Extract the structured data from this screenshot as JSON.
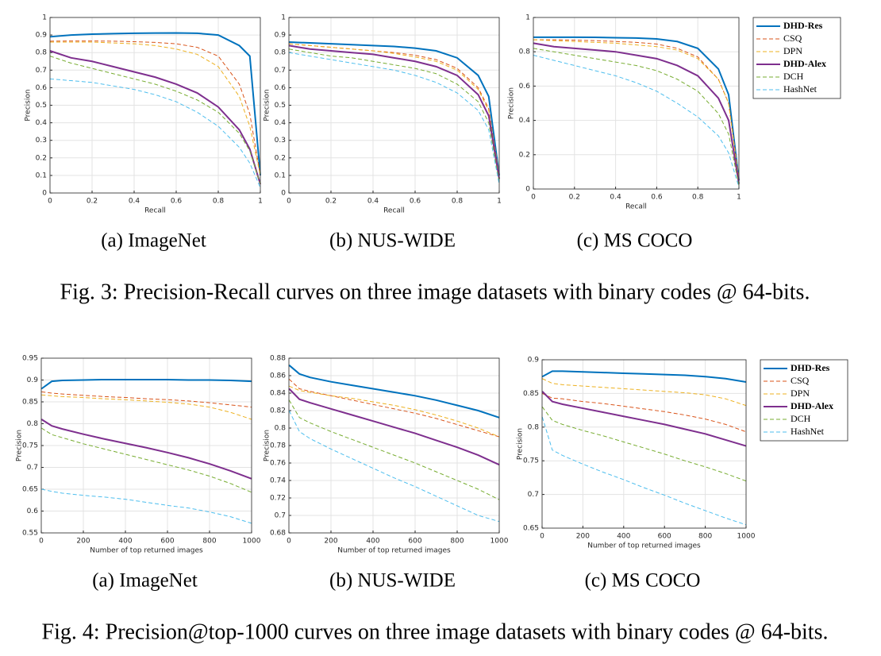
{
  "chart_data": [
    {
      "type": "line",
      "caption": "(a) ImageNet",
      "x_label": "Recall",
      "y_label": "Precision",
      "x": [
        0,
        0.1,
        0.2,
        0.3,
        0.4,
        0.5,
        0.6,
        0.7,
        0.8,
        0.9,
        0.95,
        1
      ],
      "xlim": [
        0,
        1
      ],
      "ylim": [
        0,
        1
      ],
      "xticks": [
        0,
        0.2,
        0.4,
        0.6,
        0.8,
        1
      ],
      "yticks": [
        0,
        0.1,
        0.2,
        0.3,
        0.4,
        0.5,
        0.6,
        0.7,
        0.8,
        0.9,
        1
      ],
      "grid": true,
      "series": [
        {
          "name": "DHD-Res",
          "color": "#0072bd",
          "style": "solid",
          "values": [
            0.89,
            0.9,
            0.905,
            0.908,
            0.91,
            0.911,
            0.912,
            0.91,
            0.9,
            0.84,
            0.78,
            0.1
          ]
        },
        {
          "name": "CSQ",
          "color": "#d95319",
          "style": "dashed",
          "values": [
            0.865,
            0.866,
            0.866,
            0.865,
            0.862,
            0.858,
            0.85,
            0.83,
            0.78,
            0.62,
            0.45,
            0.1
          ]
        },
        {
          "name": "DPN",
          "color": "#edb120",
          "style": "dashed",
          "values": [
            0.86,
            0.86,
            0.86,
            0.855,
            0.85,
            0.84,
            0.82,
            0.79,
            0.72,
            0.55,
            0.38,
            0.1
          ]
        },
        {
          "name": "DHD-Alex",
          "color": "#7e2f8e",
          "style": "solid",
          "values": [
            0.81,
            0.77,
            0.75,
            0.72,
            0.69,
            0.66,
            0.62,
            0.57,
            0.49,
            0.36,
            0.25,
            0.05
          ]
        },
        {
          "name": "DCH",
          "color": "#77ac30",
          "style": "dashed",
          "values": [
            0.78,
            0.74,
            0.71,
            0.68,
            0.65,
            0.62,
            0.58,
            0.53,
            0.46,
            0.34,
            0.24,
            0.05
          ]
        },
        {
          "name": "HashNet",
          "color": "#4dbeee",
          "style": "dashed",
          "values": [
            0.65,
            0.64,
            0.63,
            0.61,
            0.59,
            0.56,
            0.52,
            0.46,
            0.38,
            0.26,
            0.17,
            0.03
          ]
        }
      ]
    },
    {
      "type": "line",
      "caption": "(b) NUS-WIDE",
      "x_label": "Recall",
      "y_label": "Precision",
      "x": [
        0,
        0.1,
        0.2,
        0.3,
        0.4,
        0.5,
        0.6,
        0.7,
        0.8,
        0.9,
        0.95,
        1
      ],
      "xlim": [
        0,
        1
      ],
      "ylim": [
        0,
        1
      ],
      "xticks": [
        0,
        0.2,
        0.4,
        0.6,
        0.8,
        1
      ],
      "yticks": [
        0,
        0.1,
        0.2,
        0.3,
        0.4,
        0.5,
        0.6,
        0.7,
        0.8,
        0.9,
        1
      ],
      "grid": true,
      "series": [
        {
          "name": "DHD-Res",
          "color": "#0072bd",
          "style": "solid",
          "values": [
            0.86,
            0.855,
            0.85,
            0.845,
            0.84,
            0.835,
            0.825,
            0.81,
            0.77,
            0.67,
            0.55,
            0.1
          ]
        },
        {
          "name": "CSQ",
          "color": "#d95319",
          "style": "dashed",
          "values": [
            0.85,
            0.84,
            0.83,
            0.82,
            0.81,
            0.8,
            0.785,
            0.76,
            0.71,
            0.6,
            0.48,
            0.1
          ]
        },
        {
          "name": "DPN",
          "color": "#edb120",
          "style": "dashed",
          "values": [
            0.85,
            0.84,
            0.83,
            0.82,
            0.81,
            0.795,
            0.775,
            0.75,
            0.7,
            0.59,
            0.47,
            0.1
          ]
        },
        {
          "name": "DHD-Alex",
          "color": "#7e2f8e",
          "style": "solid",
          "values": [
            0.84,
            0.82,
            0.81,
            0.8,
            0.79,
            0.77,
            0.75,
            0.72,
            0.67,
            0.56,
            0.44,
            0.08
          ]
        },
        {
          "name": "DCH",
          "color": "#77ac30",
          "style": "dashed",
          "values": [
            0.82,
            0.8,
            0.78,
            0.77,
            0.75,
            0.73,
            0.71,
            0.68,
            0.62,
            0.52,
            0.4,
            0.06
          ]
        },
        {
          "name": "HashNet",
          "color": "#4dbeee",
          "style": "dashed",
          "values": [
            0.8,
            0.78,
            0.76,
            0.74,
            0.72,
            0.7,
            0.67,
            0.63,
            0.57,
            0.47,
            0.36,
            0.05
          ]
        }
      ]
    },
    {
      "type": "line",
      "caption": "(c) MS COCO",
      "x_label": "Recall",
      "y_label": "Precision",
      "legend": "right",
      "x": [
        0,
        0.1,
        0.2,
        0.3,
        0.4,
        0.5,
        0.6,
        0.7,
        0.8,
        0.9,
        0.95,
        1
      ],
      "xlim": [
        0,
        1
      ],
      "ylim": [
        0,
        1
      ],
      "xticks": [
        0,
        0.2,
        0.4,
        0.6,
        0.8,
        1
      ],
      "yticks": [
        0,
        0.2,
        0.4,
        0.6,
        0.8,
        1
      ],
      "grid": true,
      "series": [
        {
          "name": "DHD-Res",
          "color": "#0072bd",
          "style": "solid",
          "values": [
            0.885,
            0.885,
            0.885,
            0.884,
            0.882,
            0.88,
            0.875,
            0.86,
            0.82,
            0.7,
            0.55,
            0.05
          ]
        },
        {
          "name": "CSQ",
          "color": "#d95319",
          "style": "dashed",
          "values": [
            0.87,
            0.87,
            0.868,
            0.865,
            0.86,
            0.855,
            0.845,
            0.82,
            0.77,
            0.64,
            0.5,
            0.05
          ]
        },
        {
          "name": "DPN",
          "color": "#edb120",
          "style": "dashed",
          "values": [
            0.87,
            0.865,
            0.86,
            0.855,
            0.85,
            0.84,
            0.83,
            0.81,
            0.76,
            0.64,
            0.5,
            0.05
          ]
        },
        {
          "name": "DHD-Alex",
          "color": "#7e2f8e",
          "style": "solid",
          "values": [
            0.85,
            0.83,
            0.82,
            0.81,
            0.8,
            0.78,
            0.76,
            0.72,
            0.66,
            0.53,
            0.4,
            0.03
          ]
        },
        {
          "name": "DCH",
          "color": "#77ac30",
          "style": "dashed",
          "values": [
            0.82,
            0.8,
            0.78,
            0.76,
            0.74,
            0.72,
            0.69,
            0.64,
            0.57,
            0.44,
            0.32,
            0.02
          ]
        },
        {
          "name": "HashNet",
          "color": "#4dbeee",
          "style": "dashed",
          "values": [
            0.78,
            0.75,
            0.72,
            0.69,
            0.66,
            0.62,
            0.57,
            0.5,
            0.42,
            0.31,
            0.21,
            0.01
          ]
        }
      ]
    },
    {
      "type": "line",
      "caption": "(a) ImageNet",
      "x_label": "Number of top returned images",
      "y_label": "Precision",
      "x": [
        1,
        50,
        100,
        200,
        300,
        400,
        500,
        600,
        700,
        800,
        900,
        1000
      ],
      "xlim": [
        0,
        1000
      ],
      "ylim": [
        0.55,
        0.95
      ],
      "xticks": [
        0,
        200,
        400,
        600,
        800,
        1000
      ],
      "yticks": [
        0.55,
        0.6,
        0.65,
        0.7,
        0.75,
        0.8,
        0.85,
        0.9,
        0.95
      ],
      "grid": true,
      "series": [
        {
          "name": "DHD-Res",
          "color": "#0072bd",
          "style": "solid",
          "values": [
            0.88,
            0.897,
            0.899,
            0.9,
            0.901,
            0.901,
            0.901,
            0.901,
            0.9,
            0.9,
            0.899,
            0.897
          ]
        },
        {
          "name": "CSQ",
          "color": "#d95319",
          "style": "dashed",
          "values": [
            0.873,
            0.87,
            0.868,
            0.865,
            0.862,
            0.86,
            0.857,
            0.855,
            0.852,
            0.848,
            0.843,
            0.838
          ]
        },
        {
          "name": "DPN",
          "color": "#edb120",
          "style": "dashed",
          "values": [
            0.866,
            0.864,
            0.862,
            0.86,
            0.857,
            0.855,
            0.852,
            0.849,
            0.845,
            0.838,
            0.826,
            0.81
          ]
        },
        {
          "name": "DHD-Alex",
          "color": "#7e2f8e",
          "style": "solid",
          "values": [
            0.81,
            0.795,
            0.788,
            0.776,
            0.765,
            0.755,
            0.745,
            0.734,
            0.722,
            0.708,
            0.692,
            0.674
          ]
        },
        {
          "name": "DCH",
          "color": "#77ac30",
          "style": "dashed",
          "values": [
            0.79,
            0.775,
            0.768,
            0.754,
            0.742,
            0.73,
            0.718,
            0.706,
            0.694,
            0.68,
            0.663,
            0.643
          ]
        },
        {
          "name": "HashNet",
          "color": "#4dbeee",
          "style": "dashed",
          "values": [
            0.65,
            0.645,
            0.641,
            0.636,
            0.632,
            0.627,
            0.62,
            0.613,
            0.607,
            0.598,
            0.587,
            0.572
          ]
        }
      ]
    },
    {
      "type": "line",
      "caption": "(b) NUS-WIDE",
      "x_label": "Number of top returned images",
      "y_label": "Precision",
      "x": [
        1,
        50,
        100,
        200,
        300,
        400,
        500,
        600,
        700,
        800,
        900,
        1000
      ],
      "xlim": [
        0,
        1000
      ],
      "ylim": [
        0.68,
        0.88
      ],
      "xticks": [
        0,
        200,
        400,
        600,
        800,
        1000
      ],
      "yticks": [
        0.68,
        0.7,
        0.72,
        0.74,
        0.76,
        0.78,
        0.8,
        0.82,
        0.84,
        0.86,
        0.88
      ],
      "grid": true,
      "series": [
        {
          "name": "DHD-Res",
          "color": "#0072bd",
          "style": "solid",
          "values": [
            0.872,
            0.862,
            0.858,
            0.853,
            0.849,
            0.845,
            0.841,
            0.837,
            0.832,
            0.826,
            0.82,
            0.812
          ]
        },
        {
          "name": "CSQ",
          "color": "#d95319",
          "style": "dashed",
          "values": [
            0.856,
            0.845,
            0.842,
            0.837,
            0.832,
            0.827,
            0.822,
            0.817,
            0.811,
            0.804,
            0.797,
            0.79
          ]
        },
        {
          "name": "DPN",
          "color": "#edb120",
          "style": "dashed",
          "values": [
            0.848,
            0.843,
            0.841,
            0.837,
            0.834,
            0.83,
            0.826,
            0.821,
            0.815,
            0.808,
            0.8,
            0.79
          ]
        },
        {
          "name": "DHD-Alex",
          "color": "#7e2f8e",
          "style": "solid",
          "values": [
            0.845,
            0.833,
            0.829,
            0.822,
            0.815,
            0.808,
            0.801,
            0.794,
            0.786,
            0.778,
            0.769,
            0.758
          ]
        },
        {
          "name": "DCH",
          "color": "#77ac30",
          "style": "dashed",
          "values": [
            0.832,
            0.812,
            0.806,
            0.796,
            0.787,
            0.778,
            0.769,
            0.76,
            0.75,
            0.74,
            0.73,
            0.718
          ]
        },
        {
          "name": "HashNet",
          "color": "#4dbeee",
          "style": "dashed",
          "values": [
            0.82,
            0.796,
            0.788,
            0.776,
            0.765,
            0.754,
            0.743,
            0.733,
            0.722,
            0.711,
            0.7,
            0.693
          ]
        }
      ]
    },
    {
      "type": "line",
      "caption": "(c) MS COCO",
      "x_label": "Number of top returned images",
      "y_label": "Precision",
      "legend": "right",
      "x": [
        1,
        50,
        100,
        200,
        300,
        400,
        500,
        600,
        700,
        800,
        900,
        1000
      ],
      "xlim": [
        0,
        1000
      ],
      "ylim": [
        0.65,
        0.9
      ],
      "xticks": [
        0,
        200,
        400,
        600,
        800,
        1000
      ],
      "yticks": [
        0.65,
        0.7,
        0.75,
        0.8,
        0.85,
        0.9
      ],
      "grid": true,
      "series": [
        {
          "name": "DHD-Res",
          "color": "#0072bd",
          "style": "solid",
          "values": [
            0.875,
            0.883,
            0.883,
            0.882,
            0.881,
            0.88,
            0.879,
            0.878,
            0.877,
            0.875,
            0.872,
            0.867
          ]
        },
        {
          "name": "CSQ",
          "color": "#d95319",
          "style": "dashed",
          "values": [
            0.85,
            0.843,
            0.842,
            0.838,
            0.835,
            0.831,
            0.827,
            0.823,
            0.818,
            0.812,
            0.804,
            0.793
          ]
        },
        {
          "name": "DPN",
          "color": "#edb120",
          "style": "dashed",
          "values": [
            0.872,
            0.865,
            0.863,
            0.861,
            0.859,
            0.857,
            0.855,
            0.853,
            0.851,
            0.848,
            0.842,
            0.832
          ]
        },
        {
          "name": "DHD-Alex",
          "color": "#7e2f8e",
          "style": "solid",
          "values": [
            0.853,
            0.838,
            0.834,
            0.828,
            0.822,
            0.816,
            0.81,
            0.804,
            0.797,
            0.79,
            0.781,
            0.772
          ]
        },
        {
          "name": "DCH",
          "color": "#77ac30",
          "style": "dashed",
          "values": [
            0.83,
            0.81,
            0.804,
            0.795,
            0.787,
            0.778,
            0.769,
            0.76,
            0.75,
            0.741,
            0.731,
            0.72
          ]
        },
        {
          "name": "HashNet",
          "color": "#4dbeee",
          "style": "dashed",
          "values": [
            0.815,
            0.766,
            0.758,
            0.745,
            0.733,
            0.722,
            0.71,
            0.699,
            0.687,
            0.676,
            0.665,
            0.655
          ]
        }
      ]
    }
  ],
  "captions": [
    "Fig. 3: Precision-Recall curves on three image datasets with binary codes @ 64-bits.",
    "Fig. 4: Precision@top-1000 curves on three image datasets with binary codes @ 64-bits."
  ]
}
